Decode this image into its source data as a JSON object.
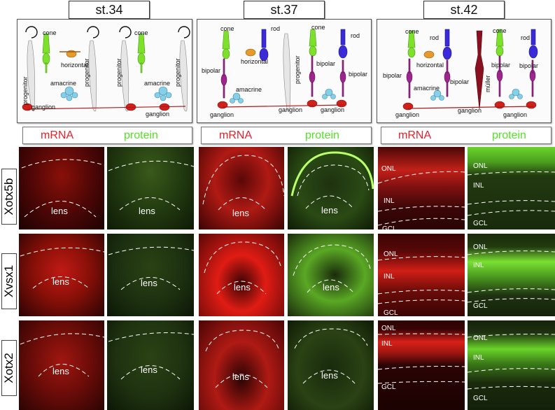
{
  "stages": {
    "s34": "st.34",
    "s37": "st.37",
    "s42": "st.42"
  },
  "cells": {
    "cone": "cone",
    "rod": "rod",
    "horizontal": "horizontal",
    "progenitor": "progenitor",
    "amacrine": "amacrine",
    "ganglion": "ganglion",
    "bipolar": "bipolar",
    "muller": "müller"
  },
  "headers": {
    "mrna": "mRNA",
    "protein": "protein"
  },
  "genes": {
    "g1": "Xotx5b",
    "g2": "Xvsx1",
    "g3": "Xotx2"
  },
  "tissue": {
    "lens": "lens",
    "onl": "ONL",
    "inl": "INL",
    "gcl": "GCL"
  },
  "colors": {
    "mrna_signal": "#e8202a",
    "protein_signal": "#55e02a",
    "cone": "#7de02a",
    "rod": "#3a2ad8",
    "bipolar": "#a0248e",
    "amacrine": "#86cfe8",
    "horizontal": "#e69a2a",
    "ganglion": "#d0201a",
    "muller": "#8a1020",
    "progenitor": "#e4e4e4"
  }
}
